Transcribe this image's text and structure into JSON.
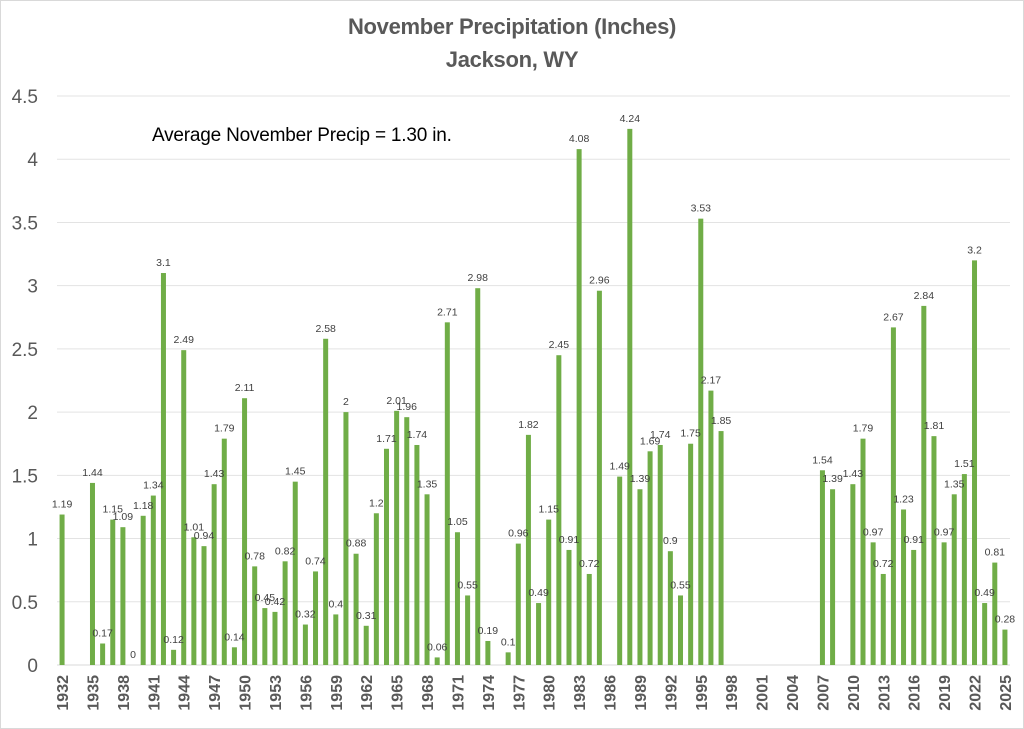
{
  "chart_data": {
    "type": "bar",
    "title": "November Precipitation (Inches)",
    "subtitle": "Jackson, WY",
    "annotation": "Average November Precip = 1.30 in.",
    "xlabel": "",
    "ylabel": "",
    "ylim": [
      0,
      4.5
    ],
    "yticks": [
      0,
      0.5,
      1,
      1.5,
      2,
      2.5,
      3,
      3.5,
      4,
      4.5
    ],
    "ytick_labels": [
      "0",
      "0.5",
      "1",
      "1.5",
      "2",
      "2.5",
      "3",
      "3.5",
      "4",
      "4.5"
    ],
    "grid": true,
    "legend": "none",
    "bar_color": "#70AD47",
    "xtick_labels": [
      "1932",
      "1935",
      "1938",
      "1941",
      "1944",
      "1947",
      "1950",
      "1953",
      "1956",
      "1959",
      "1962",
      "1965",
      "1968",
      "1971",
      "1974",
      "1977",
      "1980",
      "1983",
      "1986",
      "1989",
      "1992",
      "1995",
      "1998",
      "2001",
      "2004",
      "2007",
      "2010",
      "2013",
      "2016",
      "2019",
      "2022",
      "2025"
    ],
    "categories": [
      1932,
      1933,
      1934,
      1935,
      1936,
      1937,
      1938,
      1939,
      1940,
      1941,
      1942,
      1943,
      1944,
      1945,
      1946,
      1947,
      1948,
      1949,
      1950,
      1951,
      1952,
      1953,
      1954,
      1955,
      1956,
      1957,
      1958,
      1959,
      1960,
      1961,
      1962,
      1963,
      1964,
      1965,
      1966,
      1967,
      1968,
      1969,
      1970,
      1971,
      1972,
      1973,
      1974,
      1975,
      1976,
      1977,
      1978,
      1979,
      1980,
      1981,
      1982,
      1983,
      1984,
      1985,
      1986,
      1987,
      1988,
      1989,
      1990,
      1991,
      1992,
      1993,
      1994,
      1995,
      1996,
      1997,
      1998,
      1999,
      2000,
      2001,
      2002,
      2003,
      2004,
      2005,
      2006,
      2007,
      2008,
      2009,
      2010,
      2011,
      2012,
      2013,
      2014,
      2015,
      2016,
      2017,
      2018,
      2019,
      2020,
      2021,
      2022,
      2023,
      2024,
      2025
    ],
    "values": [
      1.19,
      null,
      null,
      1.44,
      0.17,
      1.15,
      1.09,
      0,
      1.18,
      1.34,
      3.1,
      0.12,
      2.49,
      1.01,
      0.94,
      1.43,
      1.79,
      0.14,
      2.11,
      0.78,
      0.45,
      0.42,
      0.82,
      1.45,
      0.32,
      0.74,
      2.58,
      0.4,
      2,
      0.88,
      0.31,
      1.2,
      1.71,
      2.01,
      1.96,
      1.74,
      1.35,
      0.06,
      2.71,
      1.05,
      0.55,
      2.98,
      0.19,
      null,
      0.1,
      0.96,
      1.82,
      0.49,
      1.15,
      2.45,
      0.91,
      4.08,
      0.72,
      2.96,
      null,
      1.49,
      4.24,
      1.39,
      1.69,
      1.74,
      0.9,
      0.55,
      1.75,
      3.53,
      2.17,
      1.85,
      null,
      null,
      null,
      null,
      null,
      null,
      null,
      null,
      null,
      1.54,
      1.39,
      null,
      1.43,
      1.79,
      0.97,
      0.72,
      2.67,
      1.23,
      0.91,
      2.84,
      1.81,
      0.97,
      1.35,
      1.51,
      3.2,
      0.49,
      0.81,
      0.28
    ]
  }
}
